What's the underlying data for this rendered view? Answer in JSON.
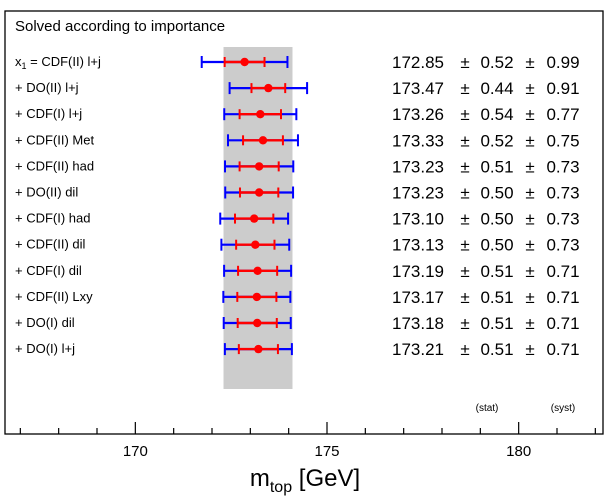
{
  "chart_data": {
    "type": "scatter",
    "title": "Solved according to importance",
    "xlabel_main": "m",
    "xlabel_sub": "top",
    "xlabel_unit": " [GeV]",
    "xlim": [
      166.6,
      182.2
    ],
    "xticks": [
      170,
      175,
      180
    ],
    "band": [
      172.3,
      174.1
    ],
    "stat_label": "(stat)",
    "syst_label": "(syst)",
    "pm": "±",
    "colors": {
      "normal_text": "#000000",
      "highlight_text": "#ff0000",
      "bar_inner": "#ff0000",
      "bar_outer": "#0000ff",
      "marker": "#ff0000",
      "band": "#cccccc"
    },
    "rows": [
      {
        "label": "x₁ = CDF(II) l+j",
        "label_prefix": "x",
        "label_sub": "1",
        "label_rest": " = CDF(II) l+j",
        "center": 172.85,
        "center_str": "172.85",
        "stat": 0.52,
        "stat_str": "0.52",
        "syst": 0.99,
        "syst_str": "0.99",
        "highlight": false
      },
      {
        "label": "+ DO(II) l+j",
        "center": 173.47,
        "center_str": "173.47",
        "stat": 0.44,
        "stat_str": "0.44",
        "syst": 0.91,
        "syst_str": "0.91",
        "highlight": false
      },
      {
        "label": "+ CDF(I) l+j",
        "center": 173.26,
        "center_str": "173.26",
        "stat": 0.54,
        "stat_str": "0.54",
        "syst": 0.77,
        "syst_str": "0.77",
        "highlight": false
      },
      {
        "label": "+ CDF(II) Met",
        "center": 173.33,
        "center_str": "173.33",
        "stat": 0.52,
        "stat_str": "0.52",
        "syst": 0.75,
        "syst_str": "0.75",
        "highlight": false
      },
      {
        "label": "+ CDF(II) had",
        "center": 173.23,
        "center_str": "173.23",
        "stat": 0.51,
        "stat_str": "0.51",
        "syst": 0.73,
        "syst_str": "0.73",
        "highlight": true
      },
      {
        "label": "+ DO(II) dil",
        "center": 173.23,
        "center_str": "173.23",
        "stat": 0.5,
        "stat_str": "0.50",
        "syst": 0.73,
        "syst_str": "0.73",
        "highlight": false
      },
      {
        "label": "+ CDF(I) had",
        "center": 173.1,
        "center_str": "173.10",
        "stat": 0.5,
        "stat_str": "0.50",
        "syst": 0.73,
        "syst_str": "0.73",
        "highlight": false
      },
      {
        "label": "+ CDF(II) dil",
        "center": 173.13,
        "center_str": "173.13",
        "stat": 0.5,
        "stat_str": "0.50",
        "syst": 0.73,
        "syst_str": "0.73",
        "highlight": false
      },
      {
        "label": "+ CDF(I) dil",
        "center": 173.19,
        "center_str": "173.19",
        "stat": 0.51,
        "stat_str": "0.51",
        "syst": 0.71,
        "syst_str": "0.71",
        "highlight": false
      },
      {
        "label": "+ CDF(II) Lxy",
        "center": 173.17,
        "center_str": "173.17",
        "stat": 0.51,
        "stat_str": "0.51",
        "syst": 0.71,
        "syst_str": "0.71",
        "highlight": false
      },
      {
        "label": "+ DO(I) dil",
        "center": 173.18,
        "center_str": "173.18",
        "stat": 0.51,
        "stat_str": "0.51",
        "syst": 0.71,
        "syst_str": "0.71",
        "highlight": false
      },
      {
        "label": "+ DO(I) l+j",
        "center": 173.21,
        "center_str": "173.21",
        "stat": 0.51,
        "stat_str": "0.51",
        "syst": 0.71,
        "syst_str": "0.71",
        "highlight": false
      }
    ]
  }
}
